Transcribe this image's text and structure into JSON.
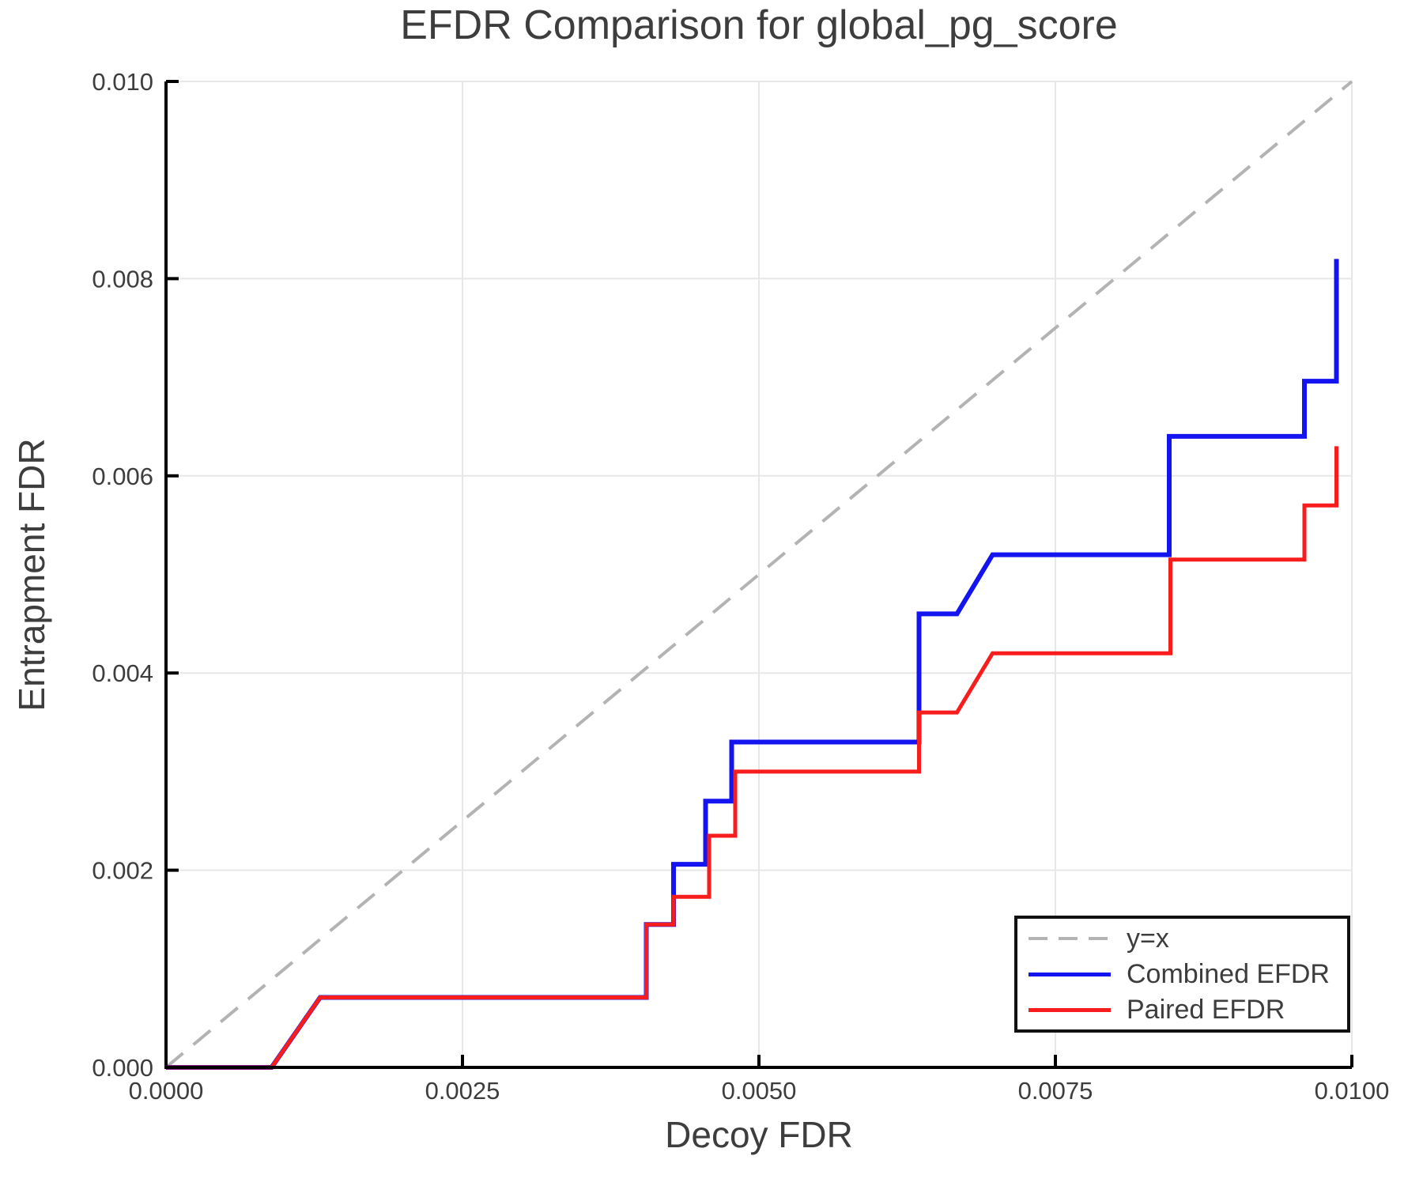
{
  "title": "EFDR Comparison for global_pg_score",
  "axes": {
    "x_label": "Decoy FDR",
    "y_label": "Entrapment FDR",
    "x_tick_labels": [
      "0.0000",
      "0.0025",
      "0.0050",
      "0.0075",
      "0.0100"
    ],
    "y_tick_labels": [
      "0.000",
      "0.002",
      "0.004",
      "0.006",
      "0.008",
      "0.010"
    ]
  },
  "legend": [
    {
      "label": "y=x",
      "style": "dashed",
      "color": "#b3b3b3"
    },
    {
      "label": "Combined EFDR",
      "style": "solid",
      "color": "#1414f0"
    },
    {
      "label": "Paired EFDR",
      "style": "solid",
      "color": "#f81d1d"
    }
  ],
  "colors": {
    "text": "#3d3d3d",
    "grid": "#e7e7e7",
    "spine": "#000000",
    "reference": "#b3b3b3",
    "combined": "#1414f0",
    "paired": "#f81d1d"
  },
  "chart_data": {
    "type": "line",
    "title": "EFDR Comparison for global_pg_score",
    "xlabel": "Decoy FDR",
    "ylabel": "Entrapment FDR",
    "xlim": [
      0.0,
      0.01
    ],
    "ylim": [
      0.0,
      0.01
    ],
    "x_tick_values": [
      0.0,
      0.0025,
      0.005,
      0.0075,
      0.01
    ],
    "y_tick_values": [
      0.0,
      0.002,
      0.004,
      0.006,
      0.008,
      0.01
    ],
    "grid": true,
    "legend_position": "lower right",
    "series": [
      {
        "name": "y=x",
        "role": "reference-line",
        "color": "#b3b3b3",
        "dashed": true,
        "stroke_width": 4,
        "points": [
          [
            0.0,
            0.0
          ],
          [
            0.01,
            0.01
          ]
        ]
      },
      {
        "name": "Combined EFDR",
        "role": "data-step-line",
        "color": "#1414f0",
        "dashed": false,
        "stroke_width": 6,
        "points": [
          [
            0.0,
            0.0
          ],
          [
            0.00089,
            0.0
          ],
          [
            0.0013,
            0.00071
          ],
          [
            0.00405,
            0.00071
          ],
          [
            0.00405,
            0.00145
          ],
          [
            0.00428,
            0.00145
          ],
          [
            0.00428,
            0.00206
          ],
          [
            0.00455,
            0.00206
          ],
          [
            0.00455,
            0.0027
          ],
          [
            0.00477,
            0.0027
          ],
          [
            0.00477,
            0.0033
          ],
          [
            0.00635,
            0.0033
          ],
          [
            0.00635,
            0.0046
          ],
          [
            0.00667,
            0.0046
          ],
          [
            0.00697,
            0.0052
          ],
          [
            0.00846,
            0.0052
          ],
          [
            0.00846,
            0.0064
          ],
          [
            0.0096,
            0.0064
          ],
          [
            0.0096,
            0.00696
          ],
          [
            0.00987,
            0.00696
          ],
          [
            0.00987,
            0.0082
          ]
        ]
      },
      {
        "name": "Paired EFDR",
        "role": "data-step-line",
        "color": "#f81d1d",
        "dashed": false,
        "stroke_width": 5,
        "points": [
          [
            0.0,
            0.0
          ],
          [
            0.00089,
            0.0
          ],
          [
            0.0013,
            0.00071
          ],
          [
            0.00405,
            0.00071
          ],
          [
            0.00405,
            0.00145
          ],
          [
            0.00428,
            0.00145
          ],
          [
            0.00428,
            0.00173
          ],
          [
            0.00458,
            0.00173
          ],
          [
            0.00458,
            0.00235
          ],
          [
            0.0048,
            0.00235
          ],
          [
            0.0048,
            0.003
          ],
          [
            0.00635,
            0.003
          ],
          [
            0.00635,
            0.0036
          ],
          [
            0.00667,
            0.0036
          ],
          [
            0.00697,
            0.0042
          ],
          [
            0.00847,
            0.0042
          ],
          [
            0.00847,
            0.00515
          ],
          [
            0.0096,
            0.00515
          ],
          [
            0.0096,
            0.0057
          ],
          [
            0.00987,
            0.0057
          ],
          [
            0.00987,
            0.0063
          ]
        ]
      }
    ]
  }
}
